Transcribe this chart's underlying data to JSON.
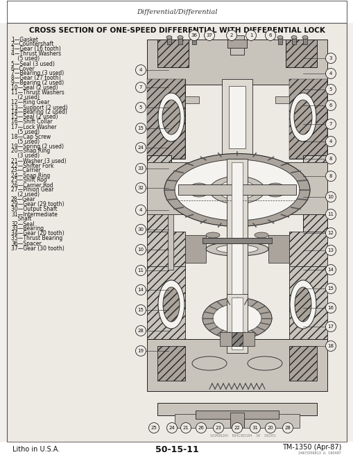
{
  "page_bg": "#f2f0ed",
  "content_bg": "#ede9e3",
  "header_text": "Differential/Differential",
  "title": "CROSS SECTION OF ONE-SPEED DIFFERENTIAL WITH DIFFERENTIAL LOCK",
  "footer_left": "Litho in U.S.A.",
  "footer_center": "50-15-11",
  "footer_right": "TM-1350 (Apr-87)",
  "footer_sub": "2467/056813  IL  180487",
  "scan_code": "SA3M36204  R041383194  30  192551",
  "parts_list": [
    "1—Gasket",
    "2—Countershaft",
    "3—Gear (16 tooth)",
    "4—Thrust Washers",
    "    (5 used)",
    "5—Seal (3 used)",
    "6—Cover",
    "7—Bearing (3 used)",
    "8—Gear (27 tooth)",
    "9—Bearing (2 used)",
    "10—Seal (2 used)",
    "11—Thrust Washers",
    "    (2 used)",
    "12—Ring Gear",
    "13—Support (2 used)",
    "14—Bearing (2 used)",
    "15—Seal (2 used)",
    "16—Shift Collar",
    "17—Lock Washer",
    "    (5 used)",
    "18—Cap Screw",
    "    (5 used)",
    "19—Spring (2 used)",
    "20—Snap Ring",
    "    (3 used)",
    "21—Washer (3 used)",
    "22—Shifter Fork",
    "23—Carrier",
    "24—Snap Ring",
    "25—Shift Rod",
    "26—Carrier Rod",
    "27—Pinion Gear",
    "    (2 used)",
    "28—Gear",
    "29—Gear (29 tooth)",
    "30—Output Shaft",
    "31—Intermediate",
    "    Shaft",
    "32—Seal",
    "33—Bearing",
    "34—Gear (20 tooth)",
    "35—Thrust Bearing",
    "36—Spacer",
    "37—Gear (30 tooth)"
  ],
  "text_color": "#111111",
  "title_fontsize": 7.5,
  "parts_fontsize": 5.5,
  "header_fontsize": 7.0,
  "footer_fontsize": 7.0,
  "callout_fontsize": 5.0
}
